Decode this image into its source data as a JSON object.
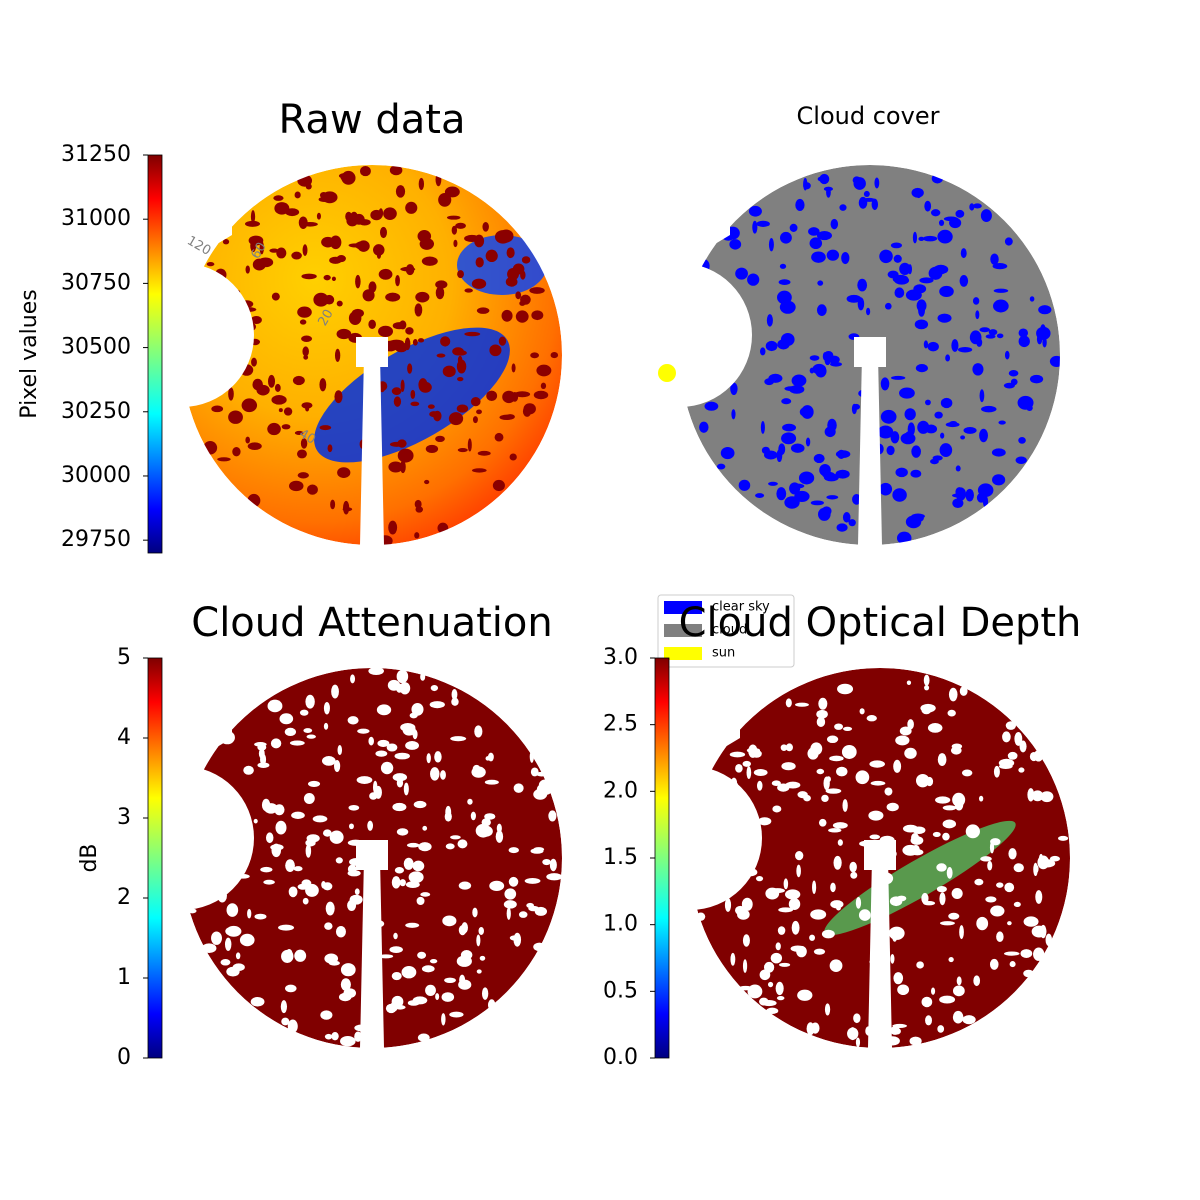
{
  "chart_data": [
    {
      "type": "image",
      "title": "Raw data",
      "colorbar_label": "Pixel values",
      "colormap": "jet",
      "ylim": [
        29700,
        31250
      ],
      "yticks": [
        29750,
        30000,
        30250,
        30500,
        30750,
        31000,
        31250
      ],
      "annotations": [
        "120",
        "60",
        "20",
        "40"
      ]
    },
    {
      "type": "image",
      "title": "Cloud cover",
      "legend": [
        {
          "name": "clear sky",
          "color": "#0000ff"
        },
        {
          "name": "cloud",
          "color": "#808080"
        },
        {
          "name": "sun",
          "color": "#ffff00"
        }
      ]
    },
    {
      "type": "image",
      "title": "Cloud Attenuation",
      "colorbar_label": "dB",
      "colormap": "jet",
      "ylim": [
        0,
        5
      ],
      "yticks": [
        0,
        1,
        2,
        3,
        4,
        5
      ]
    },
    {
      "type": "image",
      "title": "Cloud Optical Depth",
      "colormap": "jet",
      "ylim": [
        0,
        3
      ],
      "yticks": [
        {
          "value": 0,
          "label": "0.0"
        },
        {
          "value": 0.5,
          "label": "0.5"
        },
        {
          "value": 1,
          "label": "1.0"
        },
        {
          "value": 1.5,
          "label": "1.5"
        },
        {
          "value": 2,
          "label": "2.0"
        },
        {
          "value": 2.5,
          "label": "2.5"
        },
        {
          "value": 3,
          "label": "3.0"
        }
      ]
    }
  ]
}
